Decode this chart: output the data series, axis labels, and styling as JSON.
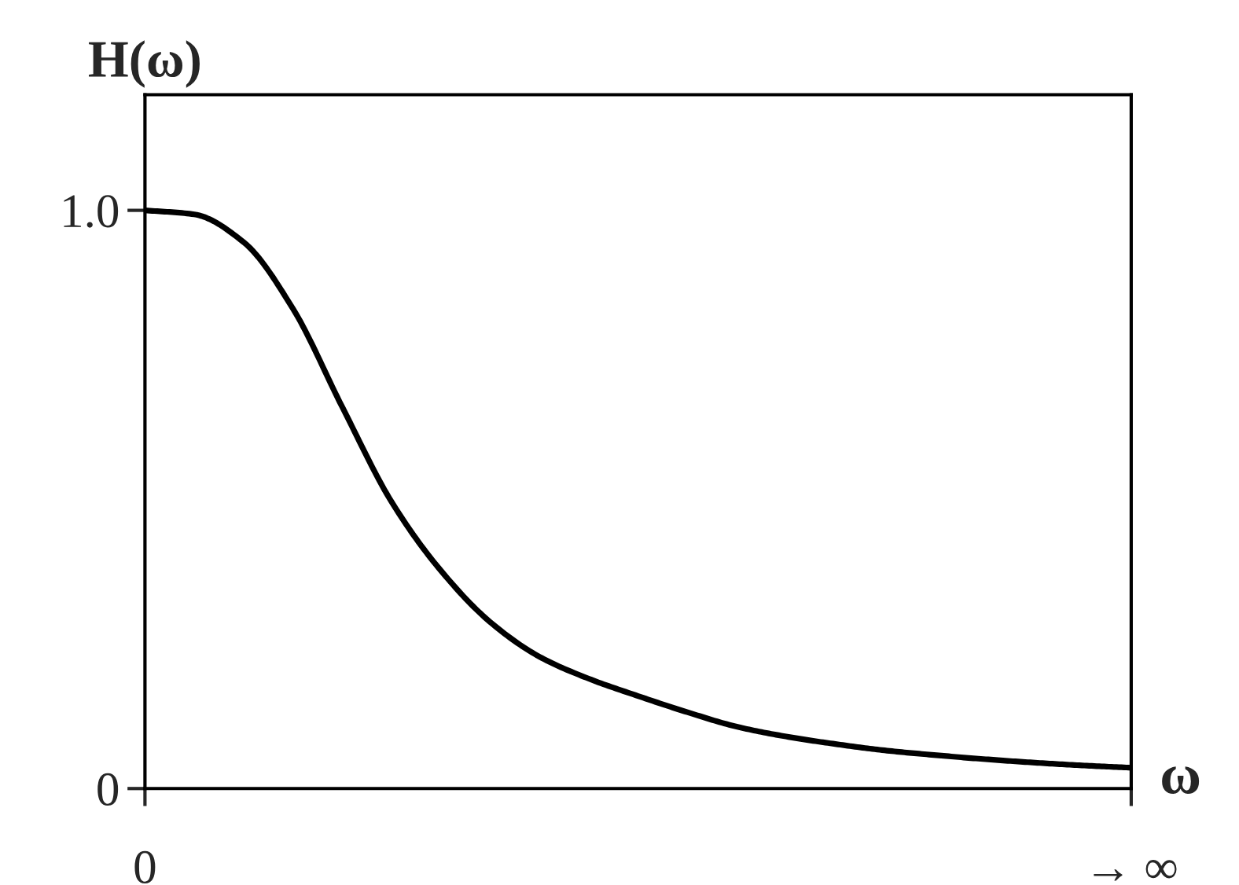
{
  "chart_data": {
    "type": "line",
    "xlabel": "ω",
    "ylabel": "H(ω)",
    "categories": [
      "0",
      null,
      null,
      null,
      null,
      null,
      null,
      null,
      null,
      null,
      null,
      null,
      null,
      null,
      null,
      null,
      null,
      null,
      null,
      null,
      "→ ∞"
    ],
    "series": [
      {
        "color": "#000000",
        "values": [
          1.0,
          0.993,
          0.945,
          0.83,
          0.66,
          0.496,
          0.377,
          0.288,
          0.228,
          0.19,
          0.16,
          0.132,
          0.107,
          0.09,
          0.077,
          0.066,
          0.058,
          0.051,
          0.045,
          0.04,
          0.036
        ]
      }
    ],
    "ylim": [
      0,
      1.2
    ],
    "yticks": [
      0,
      {
        "value": 1.0,
        "label": "1.0"
      }
    ],
    "grid": false,
    "legend": false,
    "marker": "none",
    "line_style": "solid"
  }
}
